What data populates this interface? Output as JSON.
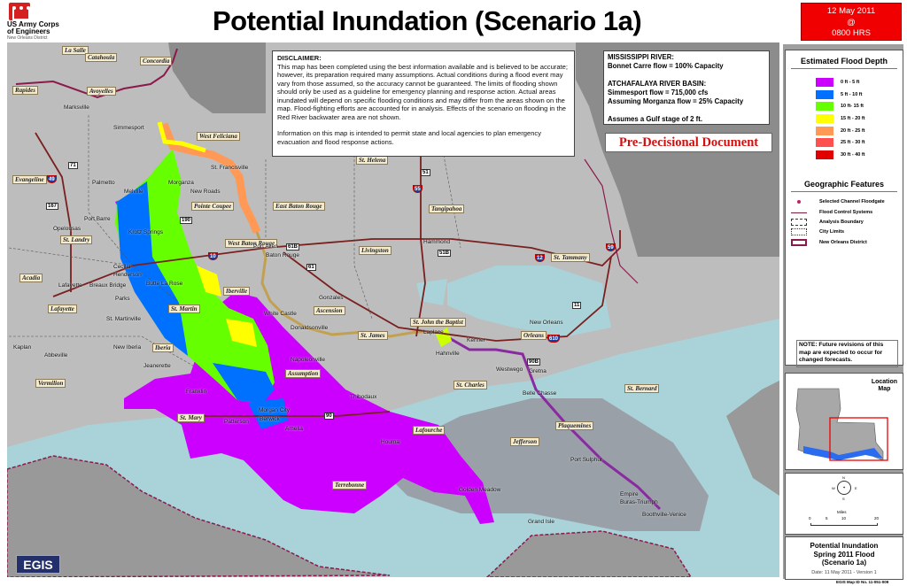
{
  "header": {
    "agency_line1": "US Army Corps",
    "agency_line2": "of Engineers",
    "district": "New Orleans District",
    "title": "Potential Inundation (Scenario 1a)",
    "date": "12 May 2011",
    "at": "@",
    "time": "0800 HRS"
  },
  "disclaimer": {
    "heading": "DISCLAIMER:",
    "body": "This map has been completed using the best information available and is believed to be accurate; however, its preparation required many assumptions. Actual conditions during a flood event may vary from those assumed, so the accuracy cannot be guaranteed. The limits of flooding shown should only be used as a guideline for emergency planning and response action. Actual areas inundated will depend on specific flooding conditions and may differ from the areas shown on the map. Flood-fighting efforts are accounted for in analysis. Effects of the scenario on flooding in the Red River backwater area are not shown.",
    "info": "Information on this map is intended to permit state and local agencies to plan emergency evacuation and flood response actions."
  },
  "river": {
    "ms_heading": "MISSISSIPPI RIVER:",
    "ms_flow": "Bonnet Carre flow = 100% Capacity",
    "atch_heading": "ATCHAFALAYA RIVER BASIN:",
    "simmesport": "Simmesport flow = 715,000 cfs",
    "morganza": "Assuming Morganza flow = 25% Capacity",
    "gulf": "Assumes a Gulf stage of 2 ft."
  },
  "pre_decisional": "Pre-Decisional Document",
  "legend": {
    "title": "Estimated Flood Depth",
    "items": [
      {
        "label": "0 ft - 5 ft",
        "color": "#cc00ff"
      },
      {
        "label": "5 ft - 10 ft",
        "color": "#0070ff"
      },
      {
        "label": "10 ft- 15 ft",
        "color": "#66ff00"
      },
      {
        "label": "15 ft - 20 ft",
        "color": "#ffff00"
      },
      {
        "label": "20 ft - 25 ft",
        "color": "#ff9955"
      },
      {
        "label": "25 ft - 30 ft",
        "color": "#ff5050"
      },
      {
        "label": "30 ft - 40 ft",
        "color": "#e00000"
      }
    ]
  },
  "geo": {
    "title": "Geographic Features",
    "items": [
      {
        "label": "Selected Channel Floodgate",
        "icon": "floodgate-dot"
      },
      {
        "label": "Flood Control Systems",
        "icon": "line"
      },
      {
        "label": "Analysis Boundary",
        "icon": "dashed-box"
      },
      {
        "label": "City Limits",
        "icon": "dotted-box"
      },
      {
        "label": "New Orleans District",
        "icon": "purple-box"
      }
    ]
  },
  "note": "NOTE: Future revisions of this map are expected to occur for changed forecasts.",
  "location_map": {
    "title_line1": "Location",
    "title_line2": "Map"
  },
  "compass": {
    "n": "N",
    "e": "E",
    "s": "S",
    "w": "W"
  },
  "scale": {
    "unit": "Miles",
    "ticks": [
      "0",
      "5",
      "10",
      "20"
    ]
  },
  "title_block": {
    "line1": "Potential Inundation",
    "line2": "Spring 2011 Flood",
    "line3": "(Scenario 1a)",
    "date": "Date: 11 May 2011 - Version 1"
  },
  "map_id": "EGIS Map ID No. 11-051-009",
  "egis_logo": "EGIS",
  "map": {
    "parishes": [
      "La Salle",
      "Catahoula",
      "Concordia",
      "Rapides",
      "Avoyelles",
      "West Feliciana",
      "Evangeline",
      "Pointe Coupee",
      "East Baton Rouge",
      "St. Landry",
      "West Baton Rouge",
      "Livingston",
      "Tangipahoa",
      "St. Tammany",
      "Acadia",
      "Iberville",
      "Lafayette",
      "St. Martin",
      "Ascension",
      "St. John the Baptist",
      "St. James",
      "Orleans",
      "Iberia",
      "Assumption",
      "Vermilion",
      "St. Charles",
      "St. Bernard",
      "St. Mary",
      "Lafourche",
      "Jefferson",
      "Plaquemines",
      "Terrebonne",
      "St. Helena"
    ],
    "cities": [
      "Marksville",
      "Simmesport",
      "St. Francisville",
      "Morganza",
      "Palmetto",
      "Melville",
      "New Roads",
      "Port Barre",
      "Opelousas",
      "Krotz Springs",
      "Port Allen",
      "Baton Rouge",
      "Hammond",
      "Cecilia",
      "Henderson",
      "Lafayette",
      "Breaux Bridge",
      "Butte La Rose",
      "Parks",
      "St. Martinville",
      "White Castle",
      "Gonzales",
      "Donaldsonville",
      "Laplace",
      "New Orleans",
      "Kenner",
      "Hahnville",
      "Westwego",
      "Gretna",
      "Belle Chasse",
      "Kaplan",
      "Abbeville",
      "New Iberia",
      "Napoleonville",
      "Jeanerette",
      "Thibodaux",
      "Franklin",
      "Morgan City",
      "Berwick",
      "Patterson",
      "Amelia",
      "Houma",
      "Golden Meadow",
      "Port Sulphur",
      "Grand Isle",
      "Empire",
      "Buras-Triumph",
      "Boothville-Venice"
    ],
    "highways": [
      {
        "n": "71",
        "t": "us"
      },
      {
        "n": "49",
        "t": "i"
      },
      {
        "n": "167",
        "t": "us"
      },
      {
        "n": "190",
        "t": "us"
      },
      {
        "n": "10",
        "t": "i"
      },
      {
        "n": "51",
        "t": "us"
      },
      {
        "n": "55",
        "t": "i"
      },
      {
        "n": "61",
        "t": "us"
      },
      {
        "n": "12",
        "t": "i"
      },
      {
        "n": "59",
        "t": "i"
      },
      {
        "n": "11",
        "t": "us"
      },
      {
        "n": "610",
        "t": "i"
      },
      {
        "n": "90",
        "t": "us"
      },
      {
        "n": "90B",
        "t": "us"
      },
      {
        "n": "61B",
        "t": "us"
      },
      {
        "n": "51B",
        "t": "us"
      }
    ]
  }
}
